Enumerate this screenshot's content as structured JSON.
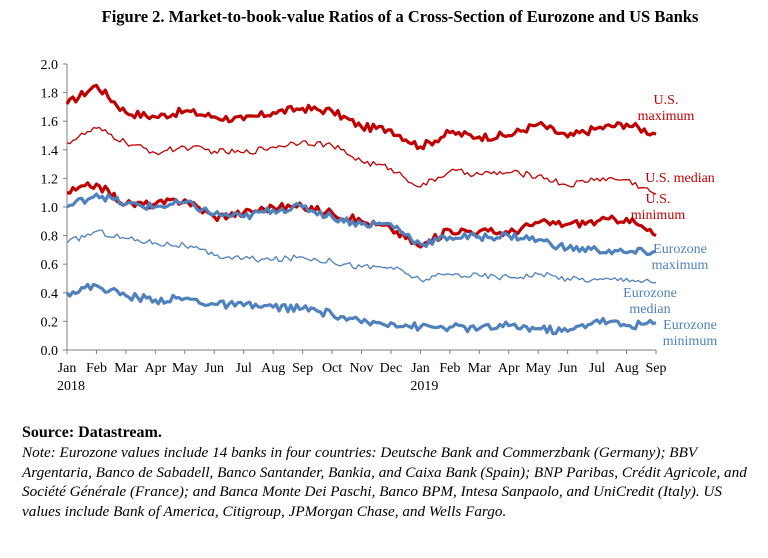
{
  "figure": {
    "title": "Figure 2. Market-to-book-value Ratios of a Cross-Section of Eurozone and US Banks",
    "source": "Source: Datastream.",
    "note": "Note: Eurozone values include 14 banks in four countries: Deutsche Bank and Commerzbank (Germany); BBV Argentaria, Banco de Sabadell, Banco Santander, Bankia, and Caixa Bank (Spain); BNP Paribas, Crédit Agricole, and Société Générale (France); and Banca Monte Dei Paschi, Banco BPM, Intesa Sanpaolo, and UniCredit (Italy). US values include Bank of America, Citigroup, JPMorgan Chase, and Wells Fargo."
  },
  "chart_data": {
    "type": "line",
    "title": "Figure 2. Market-to-book-value Ratios of a Cross-Section of Eurozone and US Banks",
    "xlabel": "",
    "ylabel": "",
    "ylim": [
      0,
      2
    ],
    "yticks": [
      "0.0",
      "0.2",
      "0.4",
      "0.6",
      "0.8",
      "1.0",
      "1.2",
      "1.4",
      "1.6",
      "1.8",
      "2.0"
    ],
    "xticks": [
      "Jan",
      "Feb",
      "Mar",
      "Apr",
      "May",
      "Jun",
      "Jul",
      "Aug",
      "Sep",
      "Oct",
      "Nov",
      "Dec",
      "Jan",
      "Feb",
      "Mar",
      "Apr",
      "May",
      "Jun",
      "Jul",
      "Aug",
      "Sep"
    ],
    "year_labels": [
      {
        "tick": 0,
        "label": "2018"
      },
      {
        "tick": 12,
        "label": "2019"
      }
    ],
    "grid": false,
    "legend": "direct labels at right end of lines",
    "x": [
      "Jan 2018",
      "Feb 2018",
      "Mar 2018",
      "Apr 2018",
      "May 2018",
      "Jun 2018",
      "Jul 2018",
      "Aug 2018",
      "Sep 2018",
      "Oct 2018",
      "Nov 2018",
      "Dec 2018",
      "Jan 2019",
      "Feb 2019",
      "Mar 2019",
      "Apr 2019",
      "May 2019",
      "Jun 2019",
      "Jul 2019",
      "Aug 2019",
      "Sep 2019"
    ],
    "series": [
      {
        "name": "U.S. maximum",
        "color": "#c00000",
        "stroke": 3.2,
        "values": [
          1.72,
          1.85,
          1.66,
          1.63,
          1.67,
          1.63,
          1.61,
          1.66,
          1.69,
          1.67,
          1.56,
          1.54,
          1.42,
          1.52,
          1.49,
          1.5,
          1.58,
          1.49,
          1.55,
          1.58,
          1.51
        ]
      },
      {
        "name": "U.S. median",
        "color": "#c00000",
        "stroke": 1.3,
        "values": [
          1.45,
          1.55,
          1.45,
          1.38,
          1.42,
          1.39,
          1.38,
          1.42,
          1.46,
          1.43,
          1.32,
          1.27,
          1.14,
          1.25,
          1.23,
          1.24,
          1.22,
          1.15,
          1.2,
          1.19,
          1.09
        ]
      },
      {
        "name": "U.S. minimum",
        "color": "#c00000",
        "stroke": 3.2,
        "values": [
          1.1,
          1.16,
          1.02,
          1.02,
          1.05,
          0.93,
          0.96,
          1.0,
          1.0,
          0.96,
          0.9,
          0.85,
          0.72,
          0.84,
          0.83,
          0.82,
          0.89,
          0.88,
          0.9,
          0.92,
          0.8
        ]
      },
      {
        "name": "Eurozone maximum",
        "color": "#4f81bd",
        "stroke": 3.2,
        "values": [
          1.0,
          1.09,
          1.02,
          1.0,
          1.03,
          0.95,
          0.93,
          0.98,
          1.0,
          0.93,
          0.88,
          0.88,
          0.74,
          0.79,
          0.79,
          0.8,
          0.77,
          0.71,
          0.7,
          0.68,
          0.69
        ]
      },
      {
        "name": "Eurozone median",
        "color": "#4f81bd",
        "stroke": 1.3,
        "values": [
          0.75,
          0.83,
          0.78,
          0.75,
          0.73,
          0.66,
          0.64,
          0.63,
          0.65,
          0.62,
          0.58,
          0.58,
          0.49,
          0.53,
          0.52,
          0.51,
          0.53,
          0.5,
          0.49,
          0.5,
          0.47
        ]
      },
      {
        "name": "Eurozone minimum",
        "color": "#4f81bd",
        "stroke": 3.2,
        "values": [
          0.4,
          0.45,
          0.38,
          0.35,
          0.36,
          0.32,
          0.31,
          0.3,
          0.29,
          0.25,
          0.19,
          0.19,
          0.16,
          0.16,
          0.15,
          0.17,
          0.15,
          0.13,
          0.21,
          0.17,
          0.19
        ]
      }
    ],
    "series_labels": [
      {
        "series": 0,
        "lines": [
          "U.S.",
          "maximum"
        ]
      },
      {
        "series": 1,
        "lines": [
          "U.S. median"
        ]
      },
      {
        "series": 2,
        "lines": [
          "U.S.",
          "minimum"
        ]
      },
      {
        "series": 3,
        "lines": [
          "Eurozone",
          "maximum"
        ]
      },
      {
        "series": 4,
        "lines": [
          "Eurozone",
          "median"
        ]
      },
      {
        "series": 5,
        "lines": [
          "Eurozone",
          "minimum"
        ]
      }
    ]
  }
}
